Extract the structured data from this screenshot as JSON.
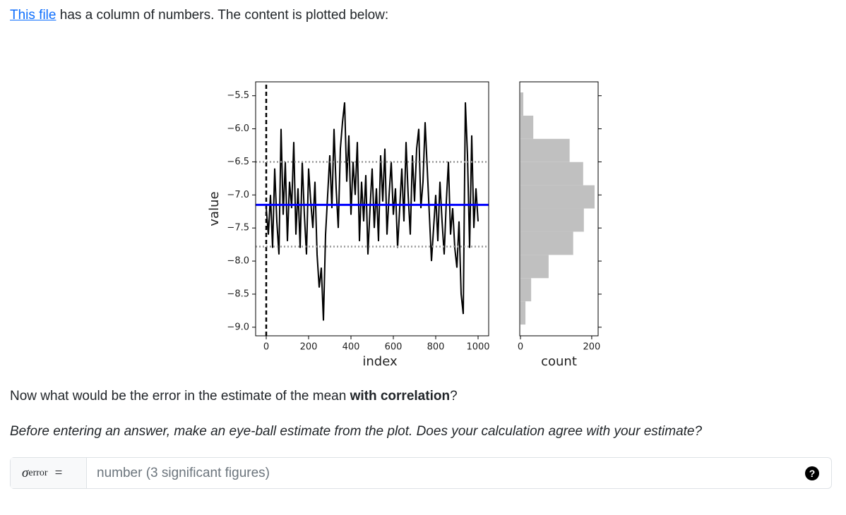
{
  "intro": {
    "link": "This file",
    "text": " has a column of numbers. The content is plotted below:"
  },
  "chart_data": [
    {
      "type": "line",
      "xlabel": "index",
      "ylabel": "value",
      "color": "#000000",
      "x": [
        0,
        10,
        20,
        30,
        40,
        50,
        60,
        70,
        80,
        90,
        100,
        110,
        120,
        130,
        140,
        150,
        160,
        170,
        180,
        190,
        200,
        210,
        220,
        230,
        240,
        250,
        260,
        270,
        280,
        290,
        300,
        310,
        320,
        330,
        340,
        350,
        360,
        370,
        380,
        390,
        400,
        410,
        420,
        430,
        440,
        450,
        460,
        470,
        480,
        490,
        500,
        510,
        520,
        530,
        540,
        550,
        560,
        570,
        580,
        590,
        600,
        610,
        620,
        630,
        640,
        650,
        660,
        670,
        680,
        690,
        700,
        710,
        720,
        730,
        740,
        750,
        760,
        770,
        780,
        790,
        800,
        810,
        820,
        830,
        840,
        850,
        860,
        870,
        880,
        890,
        900,
        910,
        920,
        930,
        940,
        950,
        960,
        970,
        980,
        990,
        1000
      ],
      "values": [
        -7.2,
        -7.6,
        -7.0,
        -7.8,
        -6.6,
        -7.4,
        -7.9,
        -6.0,
        -7.3,
        -6.5,
        -7.7,
        -6.8,
        -7.2,
        -6.2,
        -7.6,
        -6.9,
        -7.8,
        -6.5,
        -7.3,
        -7.9,
        -6.6,
        -7.1,
        -7.5,
        -6.8,
        -7.9,
        -8.4,
        -8.1,
        -8.9,
        -7.6,
        -7.0,
        -6.4,
        -7.2,
        -6.0,
        -6.9,
        -7.5,
        -6.3,
        -5.9,
        -5.6,
        -6.8,
        -6.1,
        -7.3,
        -6.5,
        -7.0,
        -6.2,
        -7.7,
        -6.8,
        -7.4,
        -6.7,
        -7.9,
        -7.2,
        -6.6,
        -7.5,
        -6.9,
        -7.7,
        -6.4,
        -7.1,
        -6.3,
        -7.6,
        -7.0,
        -6.5,
        -7.3,
        -6.9,
        -7.8,
        -7.2,
        -6.6,
        -7.4,
        -6.2,
        -7.0,
        -7.6,
        -6.4,
        -7.1,
        -6.3,
        -6.0,
        -7.2,
        -6.8,
        -5.9,
        -6.6,
        -7.3,
        -8.0,
        -7.5,
        -7.0,
        -7.7,
        -6.8,
        -7.4,
        -7.9,
        -7.1,
        -6.5,
        -7.6,
        -7.2,
        -7.8,
        -8.1,
        -7.4,
        -8.5,
        -8.8,
        -5.6,
        -6.4,
        -7.8,
        -6.1,
        -7.5,
        -6.9,
        -7.4
      ],
      "hlines": [
        {
          "value": -7.15,
          "color": "#0000ff",
          "style": "solid"
        },
        {
          "value": -6.5,
          "color": "#999999",
          "style": "dotted"
        },
        {
          "value": -7.78,
          "color": "#999999",
          "style": "dotted"
        }
      ],
      "vlines": [
        {
          "value": 0,
          "color": "#000000",
          "style": "dashed"
        }
      ],
      "xlim": [
        -50,
        1050
      ],
      "ylim": [
        -9.13,
        -5.29
      ],
      "xticks": [
        0,
        200,
        400,
        600,
        800,
        1000
      ],
      "yticks": [
        {
          "value": -5.5,
          "label": "−5.5"
        },
        {
          "value": -6.0,
          "label": "−6.0"
        },
        {
          "value": -6.5,
          "label": "−6.5"
        },
        {
          "value": -7.0,
          "label": "−7.0"
        },
        {
          "value": -7.5,
          "label": "−7.5"
        },
        {
          "value": -8.0,
          "label": "−8.0"
        },
        {
          "value": -8.5,
          "label": "−8.5"
        },
        {
          "value": -9.0,
          "label": "−9.0"
        }
      ]
    },
    {
      "type": "histogram",
      "orientation": "horizontal",
      "xlabel": "count",
      "color": "#c0c0c0",
      "bins": [
        -8.96,
        -8.609,
        -8.258,
        -7.907,
        -7.556,
        -7.205,
        -6.854,
        -6.503,
        -6.152,
        -5.801,
        -5.45
      ],
      "counts": [
        14,
        30,
        79,
        148,
        178,
        208,
        176,
        138,
        36,
        8
      ],
      "xlim": [
        -2,
        218
      ],
      "ylim": [
        -9.13,
        -5.29
      ],
      "xticks": [
        0,
        200
      ],
      "yticks": [
        -5.5,
        -6.0,
        -6.5,
        -7.0,
        -7.5,
        -8.0,
        -8.5,
        -9.0
      ]
    }
  ],
  "question": {
    "before": "Now what would be the error in the estimate of the mean ",
    "bold": "with correlation",
    "after": "?"
  },
  "hint": "Before entering an answer, make an eye-ball estimate from the plot. Does your calculation agree with your estimate?",
  "input": {
    "symbol": "σ",
    "subscript": "error",
    "equals": "=",
    "placeholder": "number (3 significant figures)",
    "help": "?"
  }
}
